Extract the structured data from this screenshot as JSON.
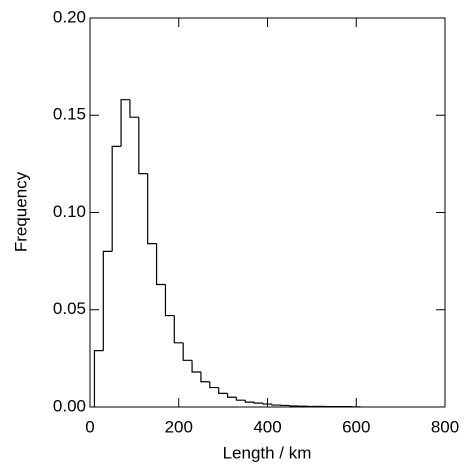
{
  "chart_data": {
    "type": "histogram",
    "x_label": "Length / km",
    "y_label": "Frequency",
    "bins": [
      10,
      30,
      50,
      70,
      90,
      110,
      130,
      150,
      170,
      190,
      210,
      230,
      250,
      270,
      290,
      310,
      330,
      350,
      370,
      390,
      410,
      430,
      450,
      470,
      490,
      510,
      530,
      550,
      570,
      590,
      610
    ],
    "values": [
      0.029,
      0.08,
      0.134,
      0.158,
      0.149,
      0.12,
      0.084,
      0.063,
      0.047,
      0.033,
      0.024,
      0.018,
      0.013,
      0.01,
      0.007,
      0.005,
      0.0035,
      0.0025,
      0.002,
      0.0015,
      0.001,
      0.0008,
      0.0005,
      0.0004,
      0.0003,
      0.0003,
      0.0002,
      0.0002,
      0.0002,
      0.0001
    ],
    "color": "#000000",
    "xlim": [
      0,
      800
    ],
    "ylim": [
      0,
      0.2
    ],
    "xticks": [
      0,
      200,
      400,
      600,
      800
    ],
    "yticks": [
      {
        "value": 0,
        "label": "0.00"
      },
      0.05,
      {
        "value": 0.1,
        "label": "0.10"
      },
      0.15,
      {
        "value": 0.2,
        "label": "0.20"
      }
    ]
  }
}
